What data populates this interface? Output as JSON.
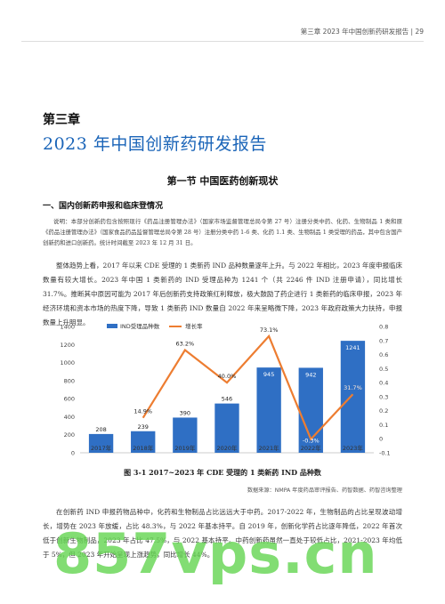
{
  "header": {
    "text": "第三章 2023 年中国创新药研发报告 | 29"
  },
  "chapter": {
    "label": "第三章",
    "title": "2023 年中国创新药研发报告"
  },
  "section": {
    "title": "第一节   中国医药创新现状"
  },
  "subsection": {
    "title": "一、国内创新药申报和临床登情况"
  },
  "note": "说明：本部分创新药包含按照现行《药品注册管理办法》（国家市场监督管理总局令第 27 号）注册分类中药、化药、生物制品 1 类和原《药品注册管理办法》（国家食品药品监督管理总局令第 28 号）注册分类中药 1-6 类、化药 1.1 类、生物制品 1 类受理的药品，其中包含国产创新药和进口创新药。统计时间截至 2023 年 12 月 31 日。",
  "paragraph1": "整体趋势上看，2017 年以来 CDE 受理的 1 类新药 IND 品种数量逐年上升。与 2022 年相比，2023 年度申报临床数量有较大增长。2023 年中国 1 类新药的 IND 受理品种为 1241 个（共 2246 件 IND 注册申请），同比增长 31.7%。推断其中原因可能为 2017 年后创新药支持政策红利释放，极大鼓励了药企进行 1 类新药的临床申报，2023 年经济环境和资本市场的热度下降，导致 1 类新药 IND 数量自 2022 年来呈略微下降，2023 年政府政策大力扶持，申报数量上升明显。",
  "chart_data": {
    "type": "bar",
    "categories": [
      "2017年",
      "2018年",
      "2019年",
      "2020年",
      "2021年",
      "2022年",
      "2023年"
    ],
    "series": [
      {
        "name": "IND受理品种数",
        "type": "bar",
        "values": [
          208,
          239,
          390,
          546,
          945,
          942,
          1241
        ],
        "axis": "left",
        "color": "#2f6fc4"
      },
      {
        "name": "增长率",
        "type": "line",
        "values": [
          null,
          0.149,
          0.632,
          0.4,
          0.731,
          -0.003,
          0.317
        ],
        "axis": "right",
        "color": "#ed7d31",
        "labels": [
          "",
          "14.9%",
          "63.2%",
          "40.0%",
          "73.1%",
          "-0.3%",
          "31.7%"
        ]
      }
    ],
    "ylim_left": [
      0,
      1400
    ],
    "yticks_left": [
      "0",
      "200",
      "400",
      "600",
      "800",
      "1000",
      "1200",
      "1400"
    ],
    "ylim_right": [
      -0.1,
      0.8
    ],
    "yticks_right": [
      "-0.1",
      "0",
      "0.1",
      "0.2",
      "0.3",
      "0.4",
      "0.5",
      "0.6",
      "0.7",
      "0.8"
    ],
    "legend_position": "top-left",
    "grid": false
  },
  "figure": {
    "caption": "图 3-1   2017~2023 年 CDE 受理的 1 类新药 IND 品种数",
    "source": "数据来源：NMPA 年度药品审评报告、药智数据、药智咨询整理"
  },
  "paragraph2": "在创新药 IND 申报药物品种中，化药和生物制品占比远远大于中药。2017-2022 年，生物制品的占比呈现波动增长，增势在 2023 年放缓，占比 48.3%，与 2022 年基本持平。自 2019 年，创新化学药占比逐年降低，2022 年首次低于创新生物制品，2023 年占比 47.5%，与 2022 基本持平。中药创新药虽然一直处于较低占比，2021-2023 年均低于 5%，但 2023 年开始呈现上涨趋势，同比增长 44%。",
  "watermark": "857vps.cn"
}
